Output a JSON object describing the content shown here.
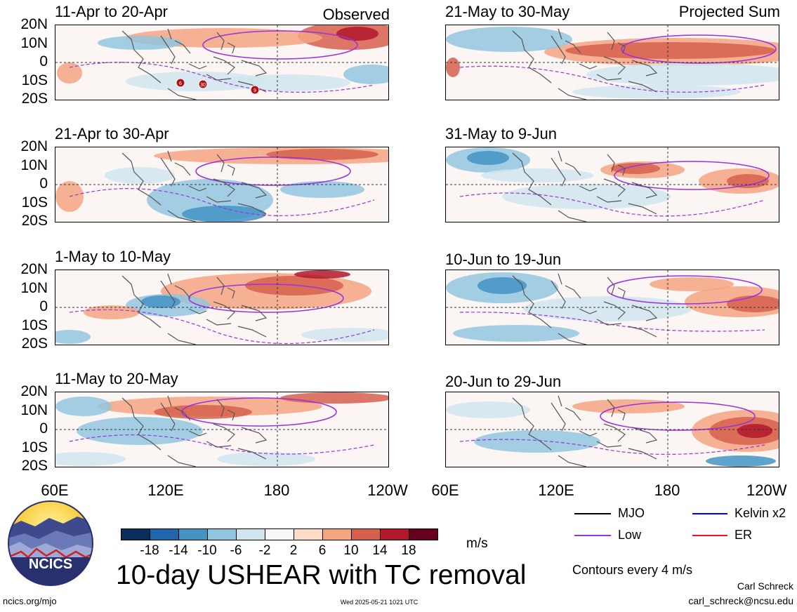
{
  "panels": [
    {
      "title": "11-Apr to 20-Apr",
      "tag": "Observed"
    },
    {
      "title": "21-Apr to 30-Apr",
      "tag": ""
    },
    {
      "title": "1-May to 10-May",
      "tag": ""
    },
    {
      "title": "11-May to 20-May",
      "tag": ""
    },
    {
      "title": "21-May to 30-May",
      "tag": "Projected Sum"
    },
    {
      "title": "31-May to 9-Jun",
      "tag": ""
    },
    {
      "title": "10-Jun to 19-Jun",
      "tag": ""
    },
    {
      "title": "20-Jun to 29-Jun",
      "tag": ""
    }
  ],
  "y_ticks": [
    "20N",
    "10N",
    "0",
    "10S",
    "20S"
  ],
  "x_ticks": [
    "60E",
    "120E",
    "180",
    "120W"
  ],
  "tc_markers": [
    "6",
    "30",
    "9"
  ],
  "colorbar": {
    "colors": [
      "#0b2d5e",
      "#2166ac",
      "#4393c3",
      "#92c5de",
      "#d1e5f0",
      "#f7f7f7",
      "#fddbc7",
      "#f4a582",
      "#d6604d",
      "#b2182b",
      "#67001f"
    ],
    "labels": [
      "-18",
      "-14",
      "-10",
      "-6",
      "-2",
      "2",
      "6",
      "10",
      "14",
      "18"
    ],
    "units": "m/s"
  },
  "title": "10-day USHEAR with TC removal",
  "legend": [
    {
      "label": "MJO",
      "color": "#000000"
    },
    {
      "label": "Kelvin x2",
      "color": "#0000ff"
    },
    {
      "label": "Low",
      "color": "#9a32e0"
    },
    {
      "label": "ER",
      "color": "#e8141c"
    }
  ],
  "contour_note": "Contours every 4 m/s",
  "author": "Carl Schreck",
  "email": "carl_schreck@ncsu.edu",
  "website": "ncics.org/mjo",
  "timestamp": "Wed 2025-05-21 1021 UTC",
  "logo_text": "NCICS",
  "chart_data": {
    "type": "heatmap",
    "variable": "USHEAR",
    "units": "m/s",
    "x_ticks": [
      "60E",
      "120E",
      "180",
      "120W"
    ],
    "y_ticks": [
      "20N",
      "10N",
      "0",
      "10S",
      "20S"
    ],
    "xlim": [
      "60E",
      "120W"
    ],
    "ylim": [
      "20S",
      "20N"
    ],
    "color_levels": [
      -18,
      -14,
      -10,
      -6,
      -2,
      2,
      6,
      10,
      14,
      18
    ],
    "contour_interval": 4,
    "panels": [
      {
        "period": "11-Apr to 20-Apr",
        "group": "Observed"
      },
      {
        "period": "21-Apr to 30-Apr",
        "group": "Observed"
      },
      {
        "period": "1-May to 10-May",
        "group": "Observed"
      },
      {
        "period": "11-May to 20-May",
        "group": "Observed"
      },
      {
        "period": "21-May to 30-May",
        "group": "Projected Sum"
      },
      {
        "period": "31-May to 9-Jun",
        "group": "Projected Sum"
      },
      {
        "period": "10-Jun to 19-Jun",
        "group": "Projected Sum"
      },
      {
        "period": "20-Jun to 29-Jun",
        "group": "Projected Sum"
      }
    ]
  }
}
